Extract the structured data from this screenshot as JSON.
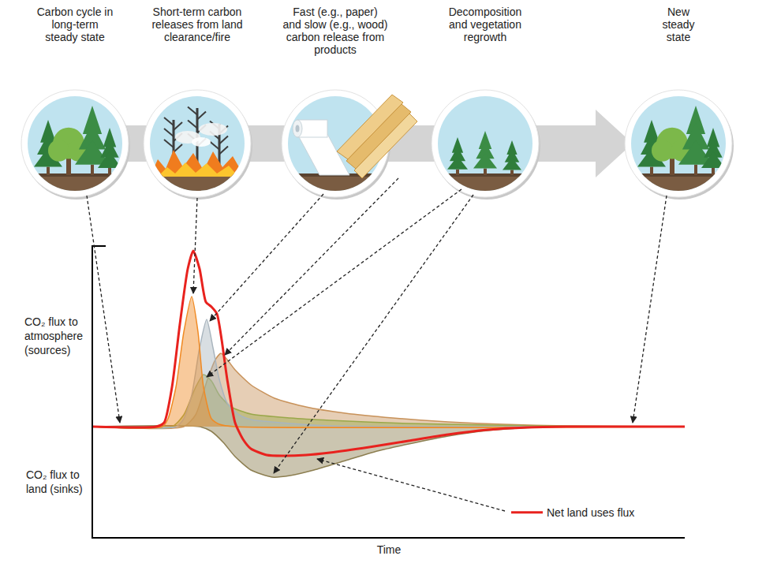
{
  "diagram": {
    "stages": [
      "Carbon cycle in long-term steady state",
      "Short-term carbon releases from land clearance/fire",
      "Fast (e.g., paper) and slow (e.g., wood) carbon release from products",
      "Decomposition and vegetation regrowth",
      "New steady state"
    ]
  },
  "chart_data": {
    "type": "area",
    "x_label": "Time",
    "annotations": [
      "CO₂ flux to atmosphere (sources)",
      "CO₂ flux to land (sinks)"
    ],
    "xlim": [
      0,
      75
    ],
    "ylim": [
      -14,
      23
    ],
    "tick_labels": false,
    "grid": false,
    "legend": "bottom right",
    "series": [
      {
        "type": "area",
        "color": "#8c7e50",
        "x": [
          0,
          13.5,
          15,
          16.5,
          18,
          20,
          22.7,
          25,
          28,
          32,
          36,
          40,
          45,
          50,
          55,
          60,
          75
        ],
        "values": [
          0,
          0,
          -0.6,
          -2,
          -3.8,
          -5.5,
          -6.4,
          -6.2,
          -5.5,
          -4.3,
          -3.1,
          -2.2,
          -1.2,
          -0.5,
          -0.15,
          0,
          0
        ]
      },
      {
        "type": "area",
        "color": "#c8925a",
        "x": [
          0,
          11.5,
          13,
          14.5,
          15.5,
          16.2,
          17,
          18,
          20,
          23,
          27,
          32,
          38,
          45,
          52,
          60,
          75
        ],
        "values": [
          0,
          0,
          1.5,
          6,
          8.5,
          9.3,
          8.5,
          7.2,
          5.3,
          3.6,
          2.5,
          1.7,
          1.1,
          0.6,
          0.3,
          0.1,
          0
        ]
      },
      {
        "type": "area",
        "color": "#9aa84a",
        "x": [
          0,
          10,
          11.5,
          13,
          14,
          15,
          16,
          17.5,
          20,
          25,
          30,
          40,
          50,
          60,
          75
        ],
        "values": [
          0,
          0,
          1.5,
          5,
          6.6,
          5.8,
          4,
          2.5,
          1.6,
          1.1,
          0.8,
          0.4,
          0.2,
          0.05,
          0
        ]
      },
      {
        "type": "area",
        "color": "#a9b5be",
        "x": [
          0,
          10.5,
          11.5,
          12.5,
          13.5,
          14.4,
          15.2,
          16,
          17,
          18.5,
          20,
          25,
          30,
          75
        ],
        "values": [
          0,
          0,
          1,
          4,
          10,
          13.6,
          10,
          6,
          3,
          1.5,
          0.9,
          0.4,
          0.1,
          0
        ]
      },
      {
        "type": "area",
        "color": "#f08a24",
        "x": [
          0,
          8.8,
          9.5,
          10.5,
          11.5,
          12.5,
          13.3,
          14,
          15,
          16,
          18,
          75
        ],
        "values": [
          0,
          0,
          1,
          5,
          12,
          16.5,
          12,
          5,
          1,
          0.3,
          0,
          0
        ]
      },
      {
        "type": "line",
        "name": "Net land uses flux",
        "color": "#e8221e",
        "x": [
          0,
          8,
          9,
          10,
          11,
          12,
          12.7,
          13.5,
          14.3,
          15,
          15.7,
          16.3,
          17,
          18,
          19,
          20,
          22,
          24,
          27,
          30,
          35,
          40,
          45,
          50,
          55,
          60,
          75
        ],
        "values": [
          0,
          0,
          0.5,
          5,
          13,
          20,
          22.3,
          20,
          15.8,
          15.2,
          14.3,
          11,
          6,
          0.5,
          -1.6,
          -2.8,
          -3.6,
          -3.7,
          -3.6,
          -3.3,
          -2.6,
          -1.8,
          -1,
          -0.4,
          -0.1,
          0,
          0
        ]
      }
    ]
  }
}
